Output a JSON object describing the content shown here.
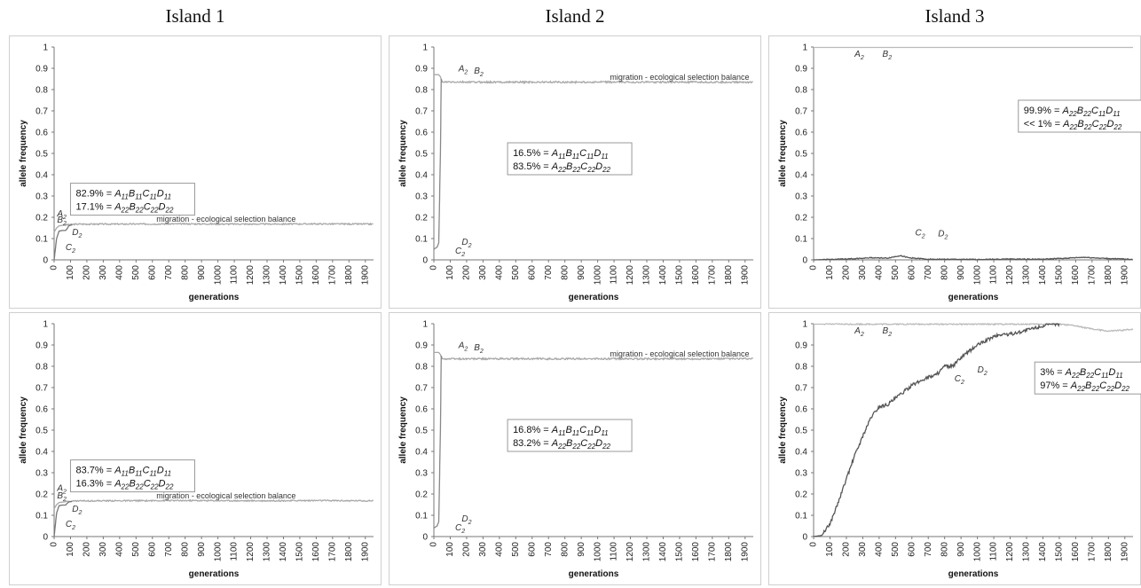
{
  "columns": [
    "Island 1",
    "Island 2",
    "Island 3"
  ],
  "chart_data": [
    {
      "type": "line",
      "xlabel": "generations",
      "ylabel": "allele frequency",
      "xlim": [
        0,
        1950
      ],
      "ylim": [
        0,
        1
      ],
      "xticks": [
        0,
        100,
        200,
        300,
        400,
        500,
        600,
        700,
        800,
        900,
        1000,
        1100,
        1200,
        1300,
        1400,
        1500,
        1600,
        1700,
        1800,
        1900
      ],
      "yticks": [
        0,
        0.1,
        0.2,
        0.3,
        0.4,
        0.5,
        0.6,
        0.7,
        0.8,
        0.9,
        1
      ],
      "series": [
        {
          "label": "A2/B2",
          "color": "#a8a8a8",
          "points": [
            [
              0,
              0.13
            ],
            [
              15,
              0.15
            ],
            [
              30,
              0.16
            ],
            [
              50,
              0.162
            ],
            [
              80,
              0.165
            ],
            [
              150,
              0.168
            ],
            [
              400,
              0.168
            ],
            [
              800,
              0.169
            ],
            [
              1200,
              0.168
            ],
            [
              1600,
              0.169
            ],
            [
              1950,
              0.168
            ]
          ],
          "noise": 0.003
        },
        {
          "label": "C2/D2",
          "color": "#777777",
          "points": [
            [
              0,
              0.0
            ],
            [
              15,
              0.1
            ],
            [
              30,
              0.135
            ],
            [
              50,
              0.138
            ],
            [
              70,
              0.138
            ],
            [
              78,
              0.145
            ],
            [
              90,
              0.16
            ],
            [
              110,
              0.165
            ]
          ],
          "noise": 0
        }
      ],
      "annotations": [
        {
          "text": "migration - ecological selection balance",
          "x": 1050,
          "y": 0.18
        },
        {
          "text": "A2",
          "x": 18,
          "y": 0.205
        },
        {
          "text": "B2",
          "x": 18,
          "y": 0.175
        },
        {
          "text": "D2",
          "x": 110,
          "y": 0.117
        },
        {
          "text": "C2",
          "x": 70,
          "y": 0.045
        }
      ],
      "box": {
        "line1": "82.9% = A11B11C11D11",
        "line2": "17.1% = A22B22C22D22",
        "x": 100,
        "y": 0.36
      }
    },
    {
      "type": "line",
      "xlabel": "generations",
      "ylabel": "allele frequency",
      "xlim": [
        0,
        1950
      ],
      "ylim": [
        0,
        1
      ],
      "xticks": [
        0,
        100,
        200,
        300,
        400,
        500,
        600,
        700,
        800,
        900,
        1000,
        1100,
        1200,
        1300,
        1400,
        1500,
        1600,
        1700,
        1800,
        1900
      ],
      "yticks": [
        0,
        0.1,
        0.2,
        0.3,
        0.4,
        0.5,
        0.6,
        0.7,
        0.8,
        0.9,
        1
      ],
      "series": [
        {
          "label": "A2/B2",
          "color": "#a8a8a8",
          "points": [
            [
              0,
              0.87
            ],
            [
              30,
              0.87
            ],
            [
              40,
              0.86
            ],
            [
              50,
              0.835
            ],
            [
              100,
              0.835
            ],
            [
              500,
              0.835
            ],
            [
              1000,
              0.835
            ],
            [
              1500,
              0.835
            ],
            [
              1950,
              0.835
            ]
          ],
          "noise": 0.004
        },
        {
          "label": "C2/D2",
          "color": "#888888",
          "points": [
            [
              0,
              0.05
            ],
            [
              20,
              0.06
            ],
            [
              30,
              0.08
            ],
            [
              40,
              0.5
            ],
            [
              45,
              0.85
            ],
            [
              50,
              0.835
            ]
          ],
          "noise": 0
        }
      ],
      "annotations": [
        {
          "text": "migration - ecological selection balance",
          "x": 1500,
          "y": 0.845
        },
        {
          "text": "A2",
          "x": 150,
          "y": 0.885
        },
        {
          "text": "B2",
          "x": 245,
          "y": 0.875
        },
        {
          "text": "D2",
          "x": 170,
          "y": 0.07
        },
        {
          "text": "C2",
          "x": 130,
          "y": 0.03
        }
      ],
      "box": {
        "line1": "16.5% = A11B11C11D11",
        "line2": "83.5% = A22B22C22D22",
        "x": 450,
        "y": 0.55
      }
    },
    {
      "type": "line",
      "xlabel": "generations",
      "ylabel": "allele frequency",
      "xlim": [
        0,
        1950
      ],
      "ylim": [
        0,
        1
      ],
      "xticks": [
        0,
        100,
        200,
        300,
        400,
        500,
        600,
        700,
        800,
        900,
        1000,
        1100,
        1200,
        1300,
        1400,
        1500,
        1600,
        1700,
        1800,
        1900
      ],
      "yticks": [
        0,
        0.1,
        0.2,
        0.3,
        0.4,
        0.5,
        0.6,
        0.7,
        0.8,
        0.9,
        1
      ],
      "series": [
        {
          "label": "A2/B2",
          "color": "#bbbbbb",
          "points": [
            [
              0,
              0.998
            ],
            [
              1950,
              0.998
            ]
          ],
          "noise": 0
        },
        {
          "label": "C2/D2",
          "color": "#555555",
          "points": [
            [
              0,
              0.0
            ],
            [
              200,
              0.004
            ],
            [
              350,
              0.01
            ],
            [
              450,
              0.008
            ],
            [
              530,
              0.02
            ],
            [
              580,
              0.01
            ],
            [
              700,
              0.003
            ],
            [
              1000,
              0.002
            ],
            [
              1200,
              0.004
            ],
            [
              1400,
              0.003
            ],
            [
              1550,
              0.008
            ],
            [
              1650,
              0.012
            ],
            [
              1800,
              0.006
            ],
            [
              1950,
              0.003
            ]
          ],
          "noise": 0.002
        }
      ],
      "annotations": [
        {
          "text": "A2",
          "x": 250,
          "y": 0.955
        },
        {
          "text": "B2",
          "x": 420,
          "y": 0.955
        },
        {
          "text": "C2",
          "x": 620,
          "y": 0.115
        },
        {
          "text": "D2",
          "x": 760,
          "y": 0.11
        }
      ],
      "box": {
        "line1": "99.9% = A22B22C11D11",
        "line2": "<< 1% = A22B22C22D22",
        "x": 1250,
        "y": 0.75
      }
    },
    {
      "type": "line",
      "xlabel": "generations",
      "ylabel": "allele frequency",
      "xlim": [
        0,
        1950
      ],
      "ylim": [
        0,
        1
      ],
      "xticks": [
        0,
        100,
        200,
        300,
        400,
        500,
        600,
        700,
        800,
        900,
        1000,
        1100,
        1200,
        1300,
        1400,
        1500,
        1600,
        1700,
        1800,
        1900
      ],
      "yticks": [
        0,
        0.1,
        0.2,
        0.3,
        0.4,
        0.5,
        0.6,
        0.7,
        0.8,
        0.9,
        1
      ],
      "series": [
        {
          "label": "A2/B2",
          "color": "#a8a8a8",
          "points": [
            [
              0,
              0.13
            ],
            [
              15,
              0.15
            ],
            [
              30,
              0.16
            ],
            [
              50,
              0.162
            ],
            [
              80,
              0.165
            ],
            [
              150,
              0.168
            ],
            [
              400,
              0.168
            ],
            [
              800,
              0.169
            ],
            [
              1200,
              0.168
            ],
            [
              1600,
              0.169
            ],
            [
              1950,
              0.168
            ]
          ],
          "noise": 0.003
        },
        {
          "label": "C2/D2",
          "color": "#777777",
          "points": [
            [
              0,
              0.0
            ],
            [
              15,
              0.11
            ],
            [
              30,
              0.145
            ],
            [
              50,
              0.148
            ],
            [
              70,
              0.148
            ],
            [
              78,
              0.155
            ],
            [
              90,
              0.163
            ],
            [
              110,
              0.166
            ]
          ],
          "noise": 0
        }
      ],
      "annotations": [
        {
          "text": "migration - ecological selection balance",
          "x": 1050,
          "y": 0.18
        },
        {
          "text": "A2",
          "x": 18,
          "y": 0.215
        },
        {
          "text": "B2",
          "x": 18,
          "y": 0.18
        },
        {
          "text": "D2",
          "x": 110,
          "y": 0.117
        },
        {
          "text": "C2",
          "x": 70,
          "y": 0.045
        }
      ],
      "box": {
        "line1": "83.7% = A11B11C11D11",
        "line2": "16.3% = A22B22C22D22",
        "x": 100,
        "y": 0.36
      }
    },
    {
      "type": "line",
      "xlabel": "generations",
      "ylabel": "allele frequency",
      "xlim": [
        0,
        1950
      ],
      "ylim": [
        0,
        1
      ],
      "xticks": [
        0,
        100,
        200,
        300,
        400,
        500,
        600,
        700,
        800,
        900,
        1000,
        1100,
        1200,
        1300,
        1400,
        1500,
        1600,
        1700,
        1800,
        1900
      ],
      "yticks": [
        0,
        0.1,
        0.2,
        0.3,
        0.4,
        0.5,
        0.6,
        0.7,
        0.8,
        0.9,
        1
      ],
      "series": [
        {
          "label": "A2/B2",
          "color": "#a8a8a8",
          "points": [
            [
              0,
              0.865
            ],
            [
              30,
              0.865
            ],
            [
              40,
              0.855
            ],
            [
              50,
              0.835
            ],
            [
              100,
              0.835
            ],
            [
              500,
              0.835
            ],
            [
              1000,
              0.835
            ],
            [
              1500,
              0.835
            ],
            [
              1950,
              0.835
            ]
          ],
          "noise": 0.004
        },
        {
          "label": "C2/D2",
          "color": "#888888",
          "points": [
            [
              0,
              0.04
            ],
            [
              20,
              0.05
            ],
            [
              30,
              0.07
            ],
            [
              40,
              0.5
            ],
            [
              45,
              0.85
            ],
            [
              50,
              0.835
            ]
          ],
          "noise": 0
        }
      ],
      "annotations": [
        {
          "text": "migration - ecological selection balance",
          "x": 1500,
          "y": 0.845
        },
        {
          "text": "A2",
          "x": 150,
          "y": 0.885
        },
        {
          "text": "B2",
          "x": 245,
          "y": 0.875
        },
        {
          "text": "D2",
          "x": 170,
          "y": 0.07
        },
        {
          "text": "C2",
          "x": 130,
          "y": 0.03
        }
      ],
      "box": {
        "line1": "16.8% = A11B11C11D11",
        "line2": "83.2% = A22B22C22D22",
        "x": 450,
        "y": 0.55
      }
    },
    {
      "type": "line",
      "xlabel": "generations",
      "ylabel": "allele frequency",
      "xlim": [
        0,
        1950
      ],
      "ylim": [
        0,
        1
      ],
      "xticks": [
        0,
        100,
        200,
        300,
        400,
        500,
        600,
        700,
        800,
        900,
        1000,
        1100,
        1200,
        1300,
        1400,
        1500,
        1600,
        1700,
        1800,
        1900
      ],
      "yticks": [
        0,
        0.1,
        0.2,
        0.3,
        0.4,
        0.5,
        0.6,
        0.7,
        0.8,
        0.9,
        1
      ],
      "series": [
        {
          "label": "A2/B2",
          "color": "#bbbbbb",
          "points": [
            [
              0,
              0.998
            ],
            [
              1450,
              0.998
            ],
            [
              1500,
              0.998
            ],
            [
              1600,
              0.99
            ],
            [
              1700,
              0.975
            ],
            [
              1800,
              0.965
            ],
            [
              1900,
              0.97
            ],
            [
              1950,
              0.975
            ]
          ],
          "noise": 0.003
        },
        {
          "label": "C2/D2",
          "color": "#555555",
          "points": [
            [
              0,
              0.0
            ],
            [
              50,
              0.005
            ],
            [
              100,
              0.06
            ],
            [
              150,
              0.16
            ],
            [
              200,
              0.27
            ],
            [
              250,
              0.38
            ],
            [
              300,
              0.47
            ],
            [
              350,
              0.56
            ],
            [
              400,
              0.61
            ],
            [
              450,
              0.62
            ],
            [
              500,
              0.65
            ],
            [
              550,
              0.68
            ],
            [
              600,
              0.71
            ],
            [
              650,
              0.73
            ],
            [
              700,
              0.75
            ],
            [
              750,
              0.76
            ],
            [
              800,
              0.8
            ],
            [
              850,
              0.8
            ],
            [
              900,
              0.84
            ],
            [
              950,
              0.87
            ],
            [
              1000,
              0.9
            ],
            [
              1050,
              0.92
            ],
            [
              1100,
              0.94
            ],
            [
              1150,
              0.95
            ],
            [
              1200,
              0.95
            ],
            [
              1250,
              0.96
            ],
            [
              1300,
              0.97
            ],
            [
              1350,
              0.98
            ],
            [
              1400,
              0.99
            ],
            [
              1450,
              0.995
            ],
            [
              1500,
              0.998
            ]
          ],
          "noise": 0.008
        }
      ],
      "annotations": [
        {
          "text": "A2",
          "x": 250,
          "y": 0.955
        },
        {
          "text": "B2",
          "x": 420,
          "y": 0.955
        },
        {
          "text": "C2",
          "x": 860,
          "y": 0.73
        },
        {
          "text": "D2",
          "x": 1000,
          "y": 0.77
        }
      ],
      "box": {
        "line1": "3% = A22B22C11D11",
        "line2": "97% = A22B22C22D22",
        "x": 1350,
        "y": 0.82
      }
    }
  ]
}
